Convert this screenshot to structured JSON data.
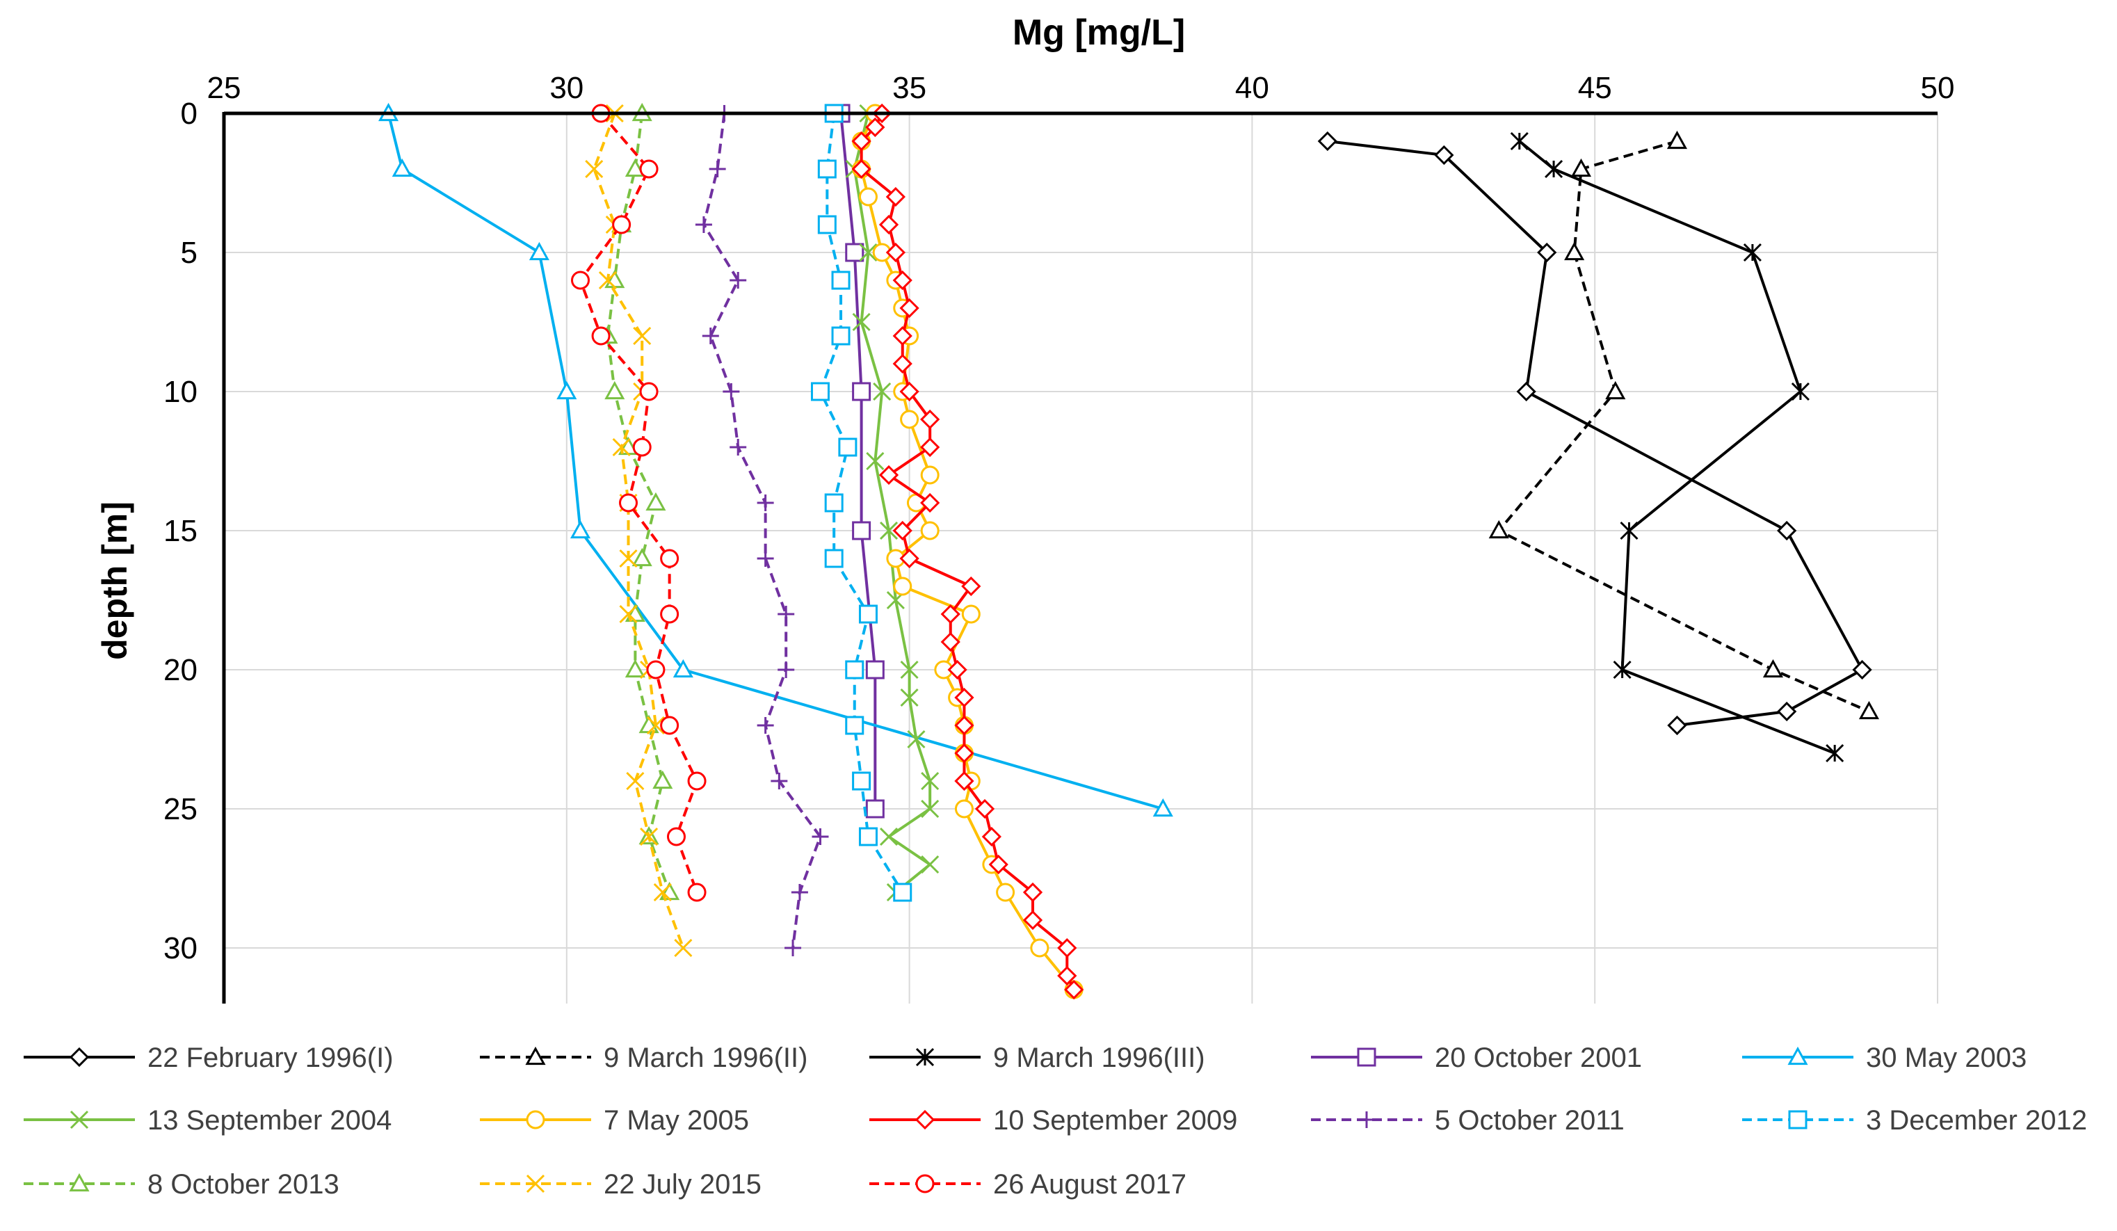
{
  "chart_data": {
    "type": "line",
    "title": "Mg [mg/L]",
    "xlabel": "Mg [mg/L]",
    "ylabel": "depth [m]",
    "xlim": [
      25,
      50
    ],
    "ylim": [
      0,
      32
    ],
    "x_ticks": [
      "25",
      "30",
      "35",
      "40",
      "45",
      "50"
    ],
    "y_ticks": [
      "0",
      "5",
      "10",
      "15",
      "20",
      "25",
      "30"
    ],
    "grid": true,
    "legend_position": "bottom",
    "series": [
      {
        "name": "22 February 1996(I)",
        "color": "#000000",
        "dash": "solid",
        "marker": "diamond",
        "points": [
          [
            41.1,
            1
          ],
          [
            42.8,
            1.5
          ],
          [
            44.3,
            5
          ],
          [
            44.0,
            10
          ],
          [
            47.8,
            15
          ],
          [
            48.9,
            20
          ],
          [
            47.8,
            21.5
          ],
          [
            46.2,
            22
          ]
        ]
      },
      {
        "name": "9 March 1996(II)",
        "color": "#000000",
        "dash": "dashed",
        "marker": "triangle",
        "points": [
          [
            46.2,
            1
          ],
          [
            44.8,
            2
          ],
          [
            44.7,
            5
          ],
          [
            45.3,
            10
          ],
          [
            43.6,
            15
          ],
          [
            47.6,
            20
          ],
          [
            49.0,
            21.5
          ]
        ]
      },
      {
        "name": "9 March 1996(III)",
        "color": "#000000",
        "dash": "solid",
        "marker": "star",
        "points": [
          [
            43.9,
            1
          ],
          [
            44.4,
            2
          ],
          [
            47.3,
            5
          ],
          [
            48.0,
            10
          ],
          [
            45.5,
            15
          ],
          [
            45.4,
            20
          ],
          [
            48.5,
            23
          ]
        ]
      },
      {
        "name": "20 October 2001",
        "color": "#7030a0",
        "dash": "solid",
        "marker": "square",
        "points": [
          [
            34.0,
            0
          ],
          [
            34.2,
            5
          ],
          [
            34.3,
            10
          ],
          [
            34.3,
            15
          ],
          [
            34.5,
            20
          ],
          [
            34.5,
            25
          ]
        ]
      },
      {
        "name": "30 May 2003",
        "color": "#00b0f0",
        "dash": "solid",
        "marker": "triangle",
        "points": [
          [
            27.4,
            0
          ],
          [
            27.6,
            2
          ],
          [
            29.6,
            5
          ],
          [
            30.0,
            10
          ],
          [
            30.2,
            15
          ],
          [
            31.7,
            20
          ],
          [
            38.7,
            25
          ]
        ]
      },
      {
        "name": "13 September 2004",
        "color": "#7ac143",
        "dash": "solid",
        "marker": "x",
        "points": [
          [
            34.4,
            0
          ],
          [
            34.2,
            2
          ],
          [
            34.4,
            5
          ],
          [
            34.3,
            7.5
          ],
          [
            34.6,
            10
          ],
          [
            34.5,
            12.5
          ],
          [
            34.7,
            15
          ],
          [
            34.8,
            17.5
          ],
          [
            35.0,
            20
          ],
          [
            35.0,
            21
          ],
          [
            35.1,
            22.5
          ],
          [
            35.3,
            24
          ],
          [
            35.3,
            25
          ],
          [
            34.7,
            26
          ],
          [
            35.3,
            27
          ],
          [
            34.8,
            28
          ]
        ]
      },
      {
        "name": "7 May 2005",
        "color": "#ffc000",
        "dash": "solid",
        "marker": "circle",
        "points": [
          [
            34.5,
            0
          ],
          [
            34.3,
            1
          ],
          [
            34.3,
            2
          ],
          [
            34.4,
            3
          ],
          [
            34.6,
            5
          ],
          [
            34.8,
            6
          ],
          [
            34.9,
            7
          ],
          [
            35.0,
            8
          ],
          [
            34.9,
            10
          ],
          [
            35.0,
            11
          ],
          [
            35.3,
            13
          ],
          [
            35.1,
            14
          ],
          [
            35.3,
            15
          ],
          [
            34.8,
            16
          ],
          [
            34.9,
            17
          ],
          [
            35.9,
            18
          ],
          [
            35.5,
            20
          ],
          [
            35.7,
            21
          ],
          [
            35.8,
            22
          ],
          [
            35.8,
            23
          ],
          [
            35.9,
            24
          ],
          [
            35.8,
            25
          ],
          [
            36.2,
            27
          ],
          [
            36.4,
            28
          ],
          [
            36.9,
            30
          ],
          [
            37.4,
            31.5
          ]
        ]
      },
      {
        "name": "10 September 2009",
        "color": "#ff0000",
        "dash": "solid",
        "marker": "diamond",
        "points": [
          [
            34.6,
            0
          ],
          [
            34.5,
            0.5
          ],
          [
            34.3,
            1
          ],
          [
            34.3,
            2
          ],
          [
            34.8,
            3
          ],
          [
            34.7,
            4
          ],
          [
            34.8,
            5
          ],
          [
            34.9,
            6
          ],
          [
            35.0,
            7
          ],
          [
            34.9,
            8
          ],
          [
            34.9,
            9
          ],
          [
            35.0,
            10
          ],
          [
            35.3,
            11
          ],
          [
            35.3,
            12
          ],
          [
            34.7,
            13
          ],
          [
            35.3,
            14
          ],
          [
            34.9,
            15
          ],
          [
            35.0,
            16
          ],
          [
            35.9,
            17
          ],
          [
            35.6,
            18
          ],
          [
            35.6,
            19
          ],
          [
            35.7,
            20
          ],
          [
            35.8,
            21
          ],
          [
            35.8,
            22
          ],
          [
            35.8,
            23
          ],
          [
            35.8,
            24
          ],
          [
            36.1,
            25
          ],
          [
            36.2,
            26
          ],
          [
            36.3,
            27
          ],
          [
            36.8,
            28
          ],
          [
            36.8,
            29
          ],
          [
            37.3,
            30
          ],
          [
            37.3,
            31
          ],
          [
            37.4,
            31.5
          ]
        ]
      },
      {
        "name": "5 October 2011",
        "color": "#7030a0",
        "dash": "dashed",
        "marker": "plus",
        "points": [
          [
            32.3,
            0
          ],
          [
            32.2,
            2
          ],
          [
            32.0,
            4
          ],
          [
            32.5,
            6
          ],
          [
            32.1,
            8
          ],
          [
            32.4,
            10
          ],
          [
            32.5,
            12
          ],
          [
            32.9,
            14
          ],
          [
            32.9,
            16
          ],
          [
            33.2,
            18
          ],
          [
            33.2,
            20
          ],
          [
            32.9,
            22
          ],
          [
            33.1,
            24
          ],
          [
            33.7,
            26
          ],
          [
            33.4,
            28
          ],
          [
            33.3,
            30
          ]
        ]
      },
      {
        "name": "3 December 2012",
        "color": "#00b0f0",
        "dash": "dashed",
        "marker": "square",
        "points": [
          [
            33.9,
            0
          ],
          [
            33.8,
            2
          ],
          [
            33.8,
            4
          ],
          [
            34.0,
            6
          ],
          [
            34.0,
            8
          ],
          [
            33.7,
            10
          ],
          [
            34.1,
            12
          ],
          [
            33.9,
            14
          ],
          [
            33.9,
            16
          ],
          [
            34.4,
            18
          ],
          [
            34.2,
            20
          ],
          [
            34.2,
            22
          ],
          [
            34.3,
            24
          ],
          [
            34.4,
            26
          ],
          [
            34.9,
            28
          ]
        ]
      },
      {
        "name": "8 October 2013",
        "color": "#7ac143",
        "dash": "dashed",
        "marker": "triangle",
        "points": [
          [
            31.1,
            0
          ],
          [
            31.0,
            2
          ],
          [
            30.8,
            4
          ],
          [
            30.7,
            6
          ],
          [
            30.6,
            8
          ],
          [
            30.7,
            10
          ],
          [
            30.9,
            12
          ],
          [
            31.3,
            14
          ],
          [
            31.1,
            16
          ],
          [
            31.0,
            18
          ],
          [
            31.0,
            20
          ],
          [
            31.2,
            22
          ],
          [
            31.4,
            24
          ],
          [
            31.2,
            26
          ],
          [
            31.5,
            28
          ]
        ]
      },
      {
        "name": "22 July 2015",
        "color": "#ffc000",
        "dash": "dashed",
        "marker": "x",
        "points": [
          [
            30.7,
            0
          ],
          [
            30.4,
            2
          ],
          [
            30.7,
            4
          ],
          [
            30.6,
            6
          ],
          [
            31.1,
            8
          ],
          [
            31.1,
            10
          ],
          [
            30.8,
            12
          ],
          [
            30.9,
            14
          ],
          [
            30.9,
            16
          ],
          [
            30.9,
            18
          ],
          [
            31.2,
            20
          ],
          [
            31.3,
            22
          ],
          [
            31.0,
            24
          ],
          [
            31.2,
            26
          ],
          [
            31.4,
            28
          ],
          [
            31.7,
            30
          ]
        ]
      },
      {
        "name": "26 August 2017",
        "color": "#ff0000",
        "dash": "dashed",
        "marker": "circle",
        "points": [
          [
            30.5,
            0
          ],
          [
            31.2,
            2
          ],
          [
            30.8,
            4
          ],
          [
            30.2,
            6
          ],
          [
            30.5,
            8
          ],
          [
            31.2,
            10
          ],
          [
            31.1,
            12
          ],
          [
            30.9,
            14
          ],
          [
            31.5,
            16
          ],
          [
            31.5,
            18
          ],
          [
            31.3,
            20
          ],
          [
            31.5,
            22
          ],
          [
            31.9,
            24
          ],
          [
            31.6,
            26
          ],
          [
            31.9,
            28
          ]
        ]
      }
    ]
  }
}
